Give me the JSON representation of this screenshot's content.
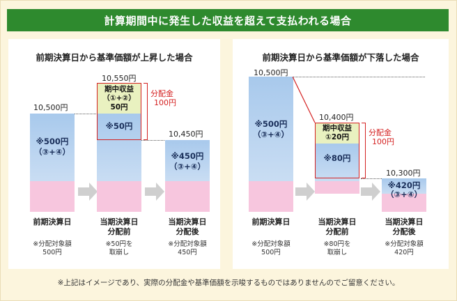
{
  "title": "計算期間中に発生した収益を超えて支払われる場合",
  "left": {
    "title": "前期決算日から基準価額が上昇した場合",
    "values": [
      "10,500円",
      "10,550円",
      "10,450円"
    ],
    "bar1_text": [
      "※500円",
      "（③+④）"
    ],
    "green_text": [
      "期中収益",
      "（①+②）",
      "50円"
    ],
    "bar2_text": "※50円",
    "bar3_text": [
      "※450円",
      "（③+④）"
    ],
    "distribution": [
      "分配金",
      "100円"
    ],
    "labels": [
      [
        "前期決算日"
      ],
      [
        "当期決算日",
        "分配前"
      ],
      [
        "当期決算日",
        "分配後"
      ]
    ],
    "notes": [
      [
        "※分配対象額",
        "500円"
      ],
      [
        "※50円を",
        "取崩し"
      ],
      [
        "※分配対象額",
        "450円"
      ]
    ]
  },
  "right": {
    "title": "前期決算日から基準価額が下落した場合",
    "values": [
      "10,500円",
      "10,400円",
      "10,300円"
    ],
    "bar1_text": [
      "※500円",
      "（③+④）"
    ],
    "green_text": [
      "期中収益",
      "①20円"
    ],
    "bar2_text": "※80円",
    "bar3_text": [
      "※420円",
      "（③+④）"
    ],
    "distribution": [
      "分配金",
      "100円"
    ],
    "labels": [
      [
        "前期決算日"
      ],
      [
        "当期決算日",
        "分配前"
      ],
      [
        "当期決算日",
        "分配後"
      ]
    ],
    "notes": [
      [
        "※分配対象額",
        "500円"
      ],
      [
        "※80円を",
        "取崩し"
      ],
      [
        "※分配対象額",
        "420円"
      ]
    ]
  },
  "footer": "※上記はイメージであり、実際の分配金や基準価額を示唆するものではありませんのでご留意ください。",
  "colors": {
    "banner": "#2e8a2e",
    "bar": "#b9d3f0",
    "base": "#f7c6de",
    "income": "#e9f1c0",
    "highlight": "#d42020"
  }
}
